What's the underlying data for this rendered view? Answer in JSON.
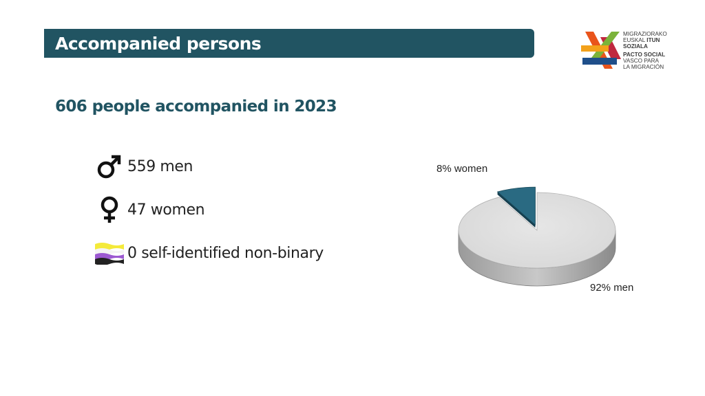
{
  "header": {
    "title": "Accompanied persons"
  },
  "logo": {
    "lines": [
      "MIGRAZIORAKO",
      "EUSKAL",
      "ITUN",
      "SOZIALA",
      "PACTO SOCIAL",
      "VASCO PARA",
      "LA MIGRACIÓN"
    ]
  },
  "headline": "606 people accompanied in 2023",
  "stats": [
    {
      "icon": "male-symbol-icon",
      "label": "559 men"
    },
    {
      "icon": "female-symbol-icon",
      "label": "47 women"
    },
    {
      "icon": "nonbinary-flag-icon",
      "label": "0 self-identified non-binary"
    }
  ],
  "colors": {
    "title_bar": "#215462",
    "headline": "#215462",
    "women_slice": "#2a6a82",
    "men_slice": "#d8d8d8"
  },
  "chart_data": {
    "type": "pie",
    "style": "3d",
    "title": "",
    "slices": [
      {
        "name": "women",
        "value": 8,
        "label": "8% women"
      },
      {
        "name": "men",
        "value": 92,
        "label": "92% men"
      }
    ]
  }
}
